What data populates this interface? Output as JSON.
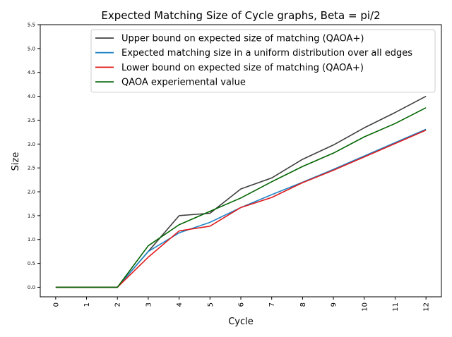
{
  "chart_data": {
    "type": "line",
    "title": "Expected Matching Size of Cycle graphs, Beta = pi/2",
    "xlabel": "Cycle",
    "ylabel": "Size",
    "x": [
      0,
      1,
      2,
      3,
      4,
      5,
      6,
      7,
      8,
      9,
      10,
      11,
      12
    ],
    "xlim": [
      -0.5,
      12.5
    ],
    "ylim": [
      -0.2,
      5.5
    ],
    "yticks": [
      "0.0",
      "0.5",
      "1.0",
      "1.5",
      "2.0",
      "2.5",
      "3.0",
      "3.5",
      "4.0",
      "4.5",
      "5.0",
      "5.5"
    ],
    "xticks": [
      "0",
      "1",
      "2",
      "3",
      "4",
      "5",
      "6",
      "7",
      "8",
      "9",
      "10",
      "11",
      "12"
    ],
    "grid": false,
    "legend_position": "top-right",
    "series": [
      {
        "name": "Upper bound on expected size of matching  (QAOA+)",
        "color": "#404040",
        "values": [
          0,
          0,
          0,
          0.75,
          1.5,
          1.55,
          2.06,
          2.29,
          2.68,
          2.98,
          3.34,
          3.66,
          4.0
        ]
      },
      {
        "name": "Expected matching size in a uniform distribution over all edges",
        "color": "#1f86c8",
        "values": [
          0,
          0,
          0,
          0.75,
          1.14,
          1.36,
          1.67,
          1.94,
          2.2,
          2.47,
          2.75,
          3.03,
          3.31
        ]
      },
      {
        "name": "Lower bound on expected size of matching  (QAOA+)",
        "color": "#e01c1c",
        "values": [
          0,
          0,
          0,
          0.63,
          1.18,
          1.28,
          1.67,
          1.88,
          2.19,
          2.45,
          2.73,
          3.01,
          3.29
        ]
      },
      {
        "name": "QAOA experiemental value",
        "color": "#006400",
        "values": [
          0,
          0,
          0,
          0.87,
          1.31,
          1.59,
          1.87,
          2.21,
          2.53,
          2.81,
          3.15,
          3.43,
          3.76
        ]
      }
    ]
  }
}
